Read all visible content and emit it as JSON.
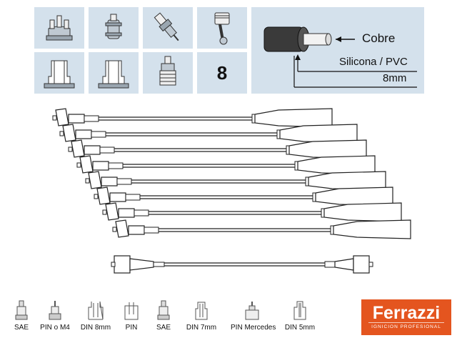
{
  "top_panel": {
    "icons": [
      {
        "name": "distributor-cap-icon"
      },
      {
        "name": "ignition-coil-icon"
      },
      {
        "name": "spark-plug-icon"
      },
      {
        "name": "piston-icon"
      },
      {
        "name": "din-socket-icon"
      },
      {
        "name": "din-socket-icon"
      },
      {
        "name": "plug-boot-icon"
      }
    ],
    "cylinder_count": "8"
  },
  "cable_spec": {
    "conductor": "Cobre",
    "insulation": "Silicona / PVC",
    "diameter": "8mm"
  },
  "terminal_legend": [
    {
      "label": "SAE"
    },
    {
      "label": "PIN o M4"
    },
    {
      "label": "DIN 8mm"
    },
    {
      "label": "PIN"
    },
    {
      "label": "SAE"
    },
    {
      "label": "DIN 7mm"
    },
    {
      "label": "PIN Mercedes"
    },
    {
      "label": "DIN 5mm"
    }
  ],
  "brand": {
    "name": "Ferrazzi",
    "tagline": "IGNICION PROFESIONAL",
    "color": "#e4551f"
  },
  "colors": {
    "panel_bg": "#d4e1ec",
    "line": "#222222"
  }
}
